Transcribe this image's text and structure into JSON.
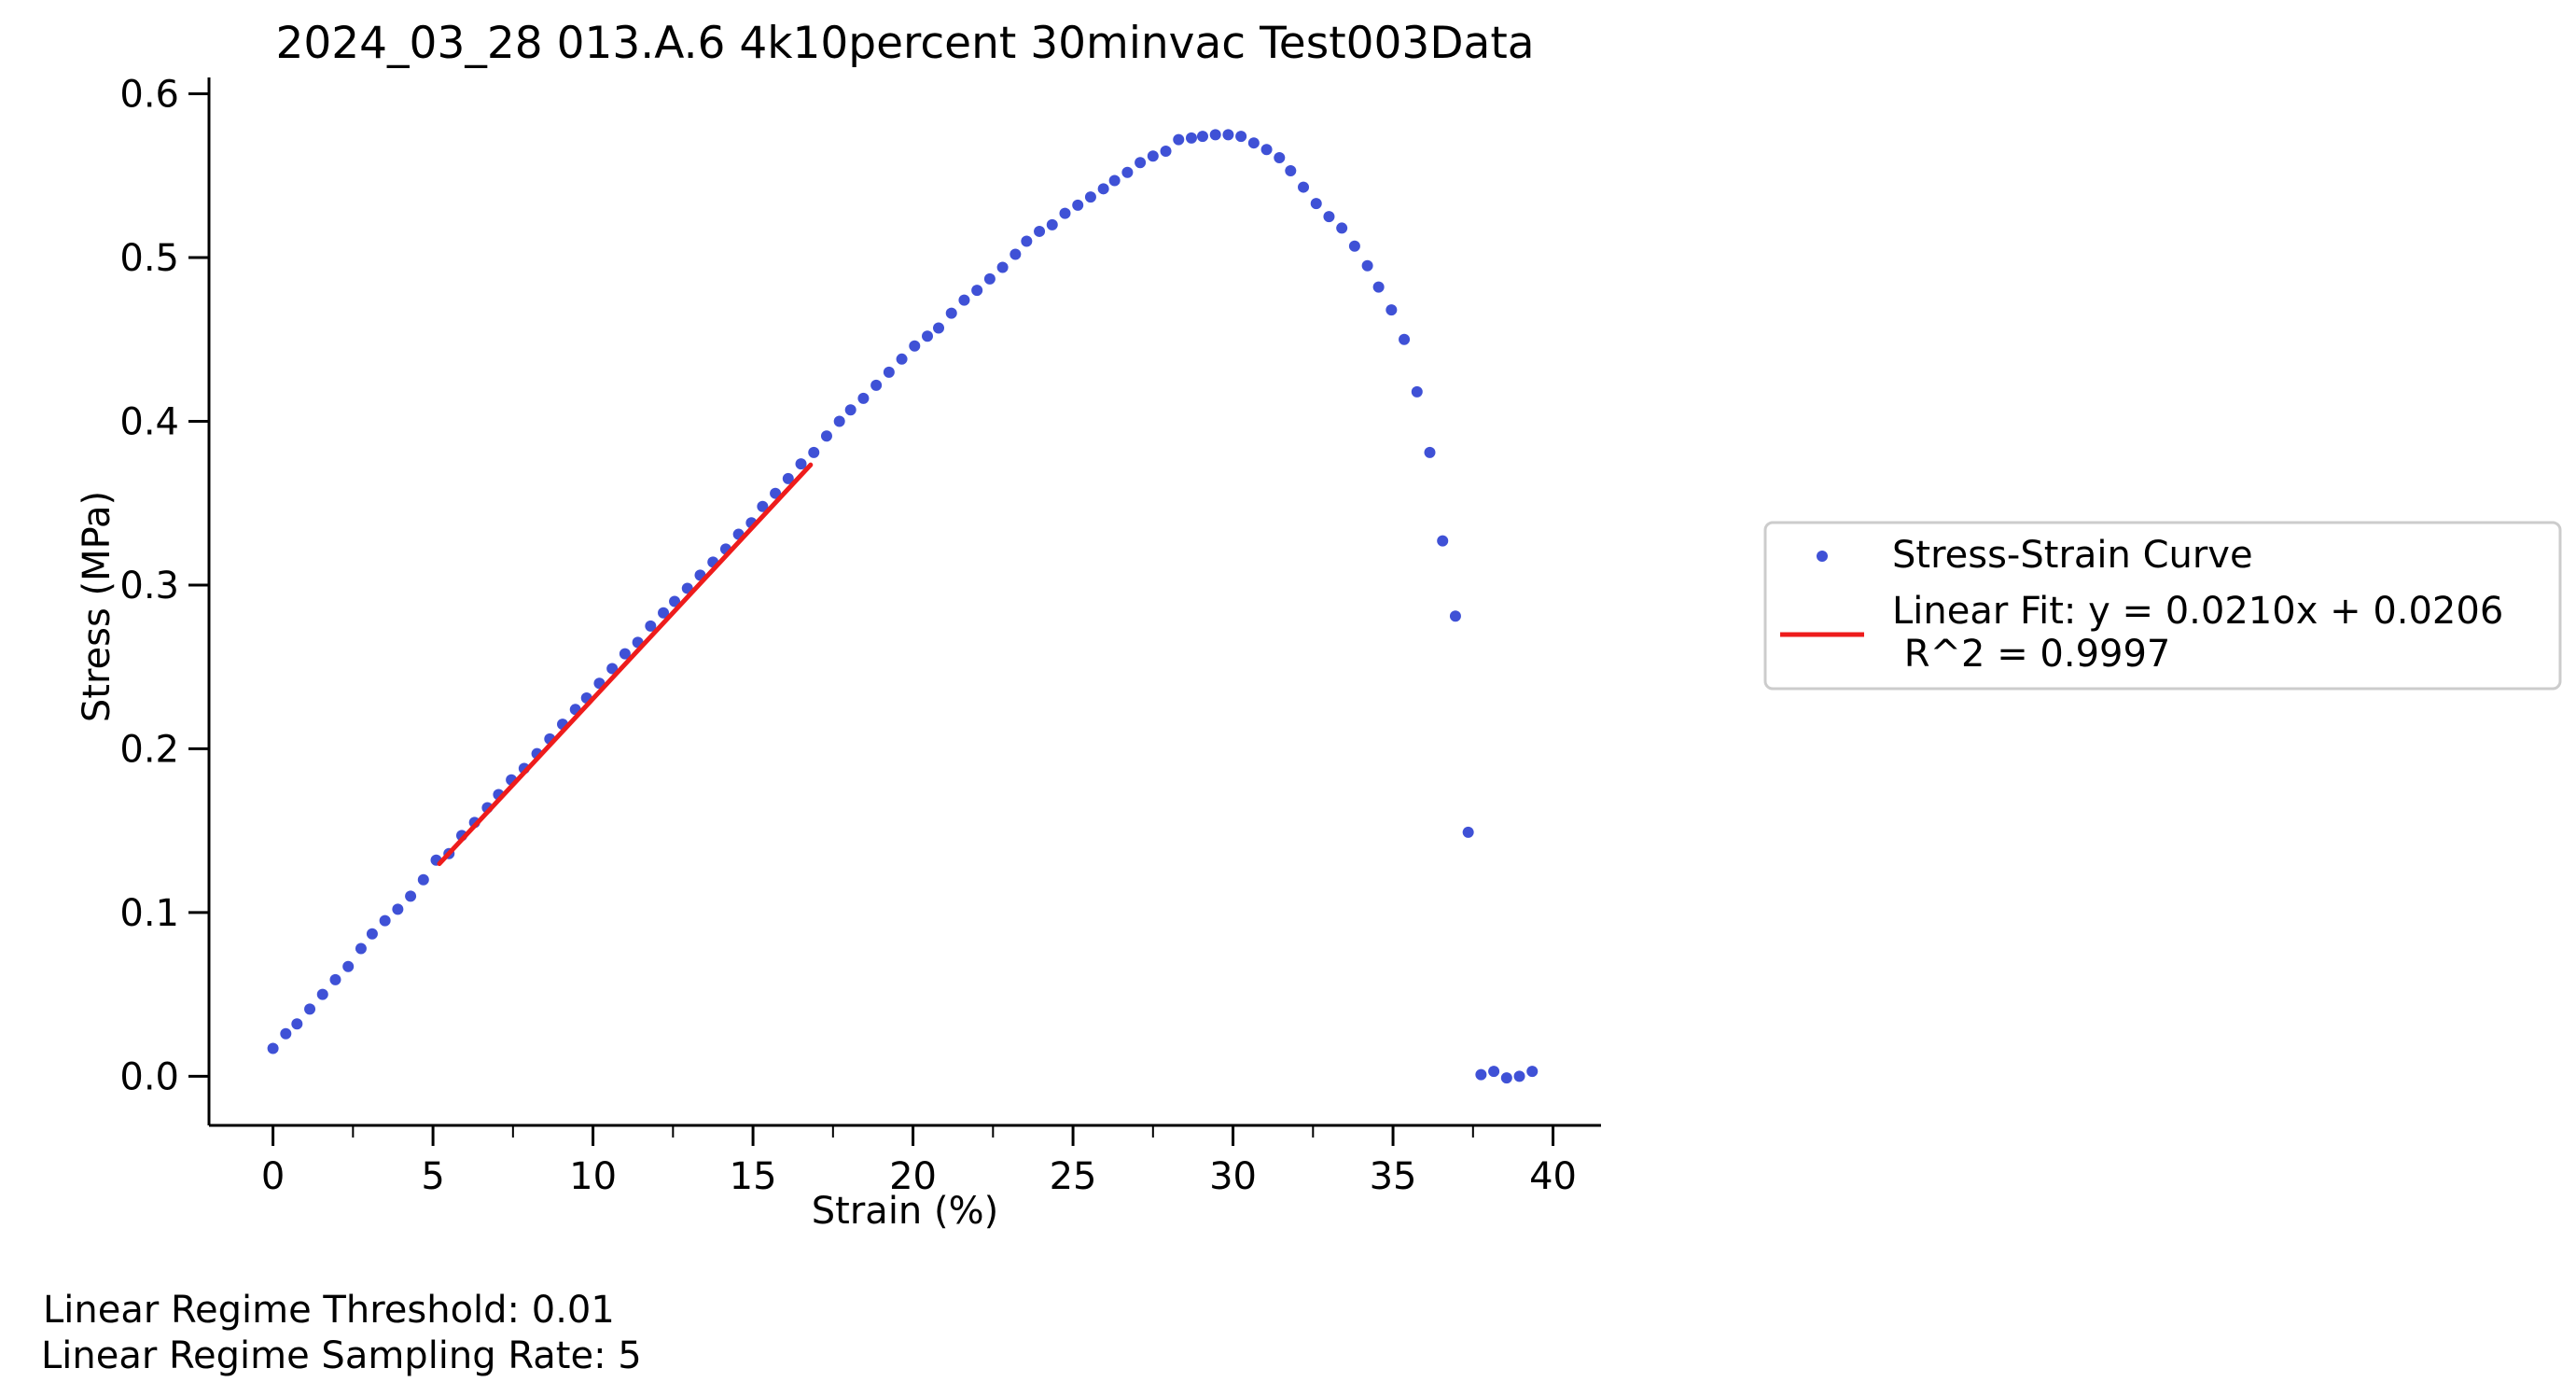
{
  "chart_data": {
    "type": "scatter",
    "title": "2024_03_28 013.A.6 4k10percent 30minvac  Test003Data",
    "xlabel": "Strain (%)",
    "ylabel": "Stress (MPa)",
    "xlim": [
      -2,
      41.5
    ],
    "ylim": [
      -0.03,
      0.61
    ],
    "xticks": [
      0,
      5,
      10,
      15,
      20,
      25,
      30,
      35,
      40
    ],
    "yticks": [
      0.0,
      0.1,
      0.2,
      0.3,
      0.4,
      0.5,
      0.6
    ],
    "xtick_labels": [
      "0",
      "5",
      "10",
      "15",
      "20",
      "25",
      "30",
      "35",
      "40"
    ],
    "ytick_labels": [
      "0.0",
      "0.1",
      "0.2",
      "0.3",
      "0.4",
      "0.5",
      "0.6"
    ],
    "xminor_step": 2.5,
    "grid": false,
    "legend_position": "right",
    "series": [
      {
        "name": "Stress-Strain Curve",
        "kind": "scatter",
        "color": "#3f51d6",
        "points": [
          [
            0.0,
            0.017
          ],
          [
            0.4,
            0.026
          ],
          [
            0.75,
            0.032
          ],
          [
            1.15,
            0.041
          ],
          [
            1.55,
            0.05
          ],
          [
            1.95,
            0.059
          ],
          [
            2.35,
            0.067
          ],
          [
            2.75,
            0.078
          ],
          [
            3.1,
            0.087
          ],
          [
            3.5,
            0.095
          ],
          [
            3.9,
            0.102
          ],
          [
            4.3,
            0.11
          ],
          [
            4.7,
            0.12
          ],
          [
            5.1,
            0.132
          ],
          [
            5.5,
            0.136
          ],
          [
            5.9,
            0.147
          ],
          [
            6.3,
            0.155
          ],
          [
            6.7,
            0.164
          ],
          [
            7.05,
            0.172
          ],
          [
            7.45,
            0.181
          ],
          [
            7.85,
            0.188
          ],
          [
            8.25,
            0.197
          ],
          [
            8.65,
            0.206
          ],
          [
            9.05,
            0.215
          ],
          [
            9.45,
            0.224
          ],
          [
            9.8,
            0.231
          ],
          [
            10.2,
            0.24
          ],
          [
            10.6,
            0.249
          ],
          [
            11.0,
            0.258
          ],
          [
            11.4,
            0.265
          ],
          [
            11.8,
            0.275
          ],
          [
            12.2,
            0.283
          ],
          [
            12.55,
            0.29
          ],
          [
            12.95,
            0.298
          ],
          [
            13.35,
            0.306
          ],
          [
            13.75,
            0.314
          ],
          [
            14.15,
            0.322
          ],
          [
            14.55,
            0.331
          ],
          [
            14.95,
            0.338
          ],
          [
            15.3,
            0.348
          ],
          [
            15.7,
            0.356
          ],
          [
            16.1,
            0.365
          ],
          [
            16.5,
            0.374
          ],
          [
            16.9,
            0.381
          ],
          [
            17.3,
            0.391
          ],
          [
            17.7,
            0.4
          ],
          [
            18.05,
            0.407
          ],
          [
            18.45,
            0.414
          ],
          [
            18.85,
            0.422
          ],
          [
            19.25,
            0.43
          ],
          [
            19.65,
            0.438
          ],
          [
            20.05,
            0.446
          ],
          [
            20.45,
            0.452
          ],
          [
            20.8,
            0.457
          ],
          [
            21.2,
            0.466
          ],
          [
            21.6,
            0.474
          ],
          [
            22.0,
            0.48
          ],
          [
            22.4,
            0.487
          ],
          [
            22.8,
            0.494
          ],
          [
            23.2,
            0.502
          ],
          [
            23.55,
            0.51
          ],
          [
            23.95,
            0.516
          ],
          [
            24.35,
            0.52
          ],
          [
            24.75,
            0.527
          ],
          [
            25.15,
            0.532
          ],
          [
            25.55,
            0.537
          ],
          [
            25.95,
            0.542
          ],
          [
            26.3,
            0.547
          ],
          [
            26.7,
            0.552
          ],
          [
            27.1,
            0.558
          ],
          [
            27.5,
            0.562
          ],
          [
            27.9,
            0.565
          ],
          [
            28.3,
            0.572
          ],
          [
            28.7,
            0.573
          ],
          [
            29.05,
            0.574
          ],
          [
            29.45,
            0.575
          ],
          [
            29.85,
            0.575
          ],
          [
            30.25,
            0.574
          ],
          [
            30.65,
            0.57
          ],
          [
            31.05,
            0.566
          ],
          [
            31.45,
            0.561
          ],
          [
            31.8,
            0.553
          ],
          [
            32.2,
            0.543
          ],
          [
            32.6,
            0.533
          ],
          [
            33.0,
            0.525
          ],
          [
            33.4,
            0.518
          ],
          [
            33.8,
            0.507
          ],
          [
            34.2,
            0.495
          ],
          [
            34.55,
            0.482
          ],
          [
            34.95,
            0.468
          ],
          [
            35.35,
            0.45
          ],
          [
            35.75,
            0.418
          ],
          [
            36.15,
            0.381
          ],
          [
            36.55,
            0.327
          ],
          [
            36.95,
            0.281
          ],
          [
            37.35,
            0.149
          ],
          [
            37.75,
            0.001
          ],
          [
            38.15,
            0.003
          ],
          [
            38.55,
            -0.001
          ],
          [
            38.95,
            0.0
          ],
          [
            39.35,
            0.003
          ]
        ]
      },
      {
        "name": "Linear Fit: y = 0.0210x + 0.0206\n R^2 = 0.9997",
        "kind": "line",
        "color": "#ee1c1c",
        "slope": 0.021,
        "intercept": 0.0206,
        "x_range": [
          5.2,
          16.8
        ]
      }
    ],
    "annotations": [
      "Linear Regime Threshold: 0.01",
      "Linear Regime Sampling Rate: 5"
    ]
  }
}
